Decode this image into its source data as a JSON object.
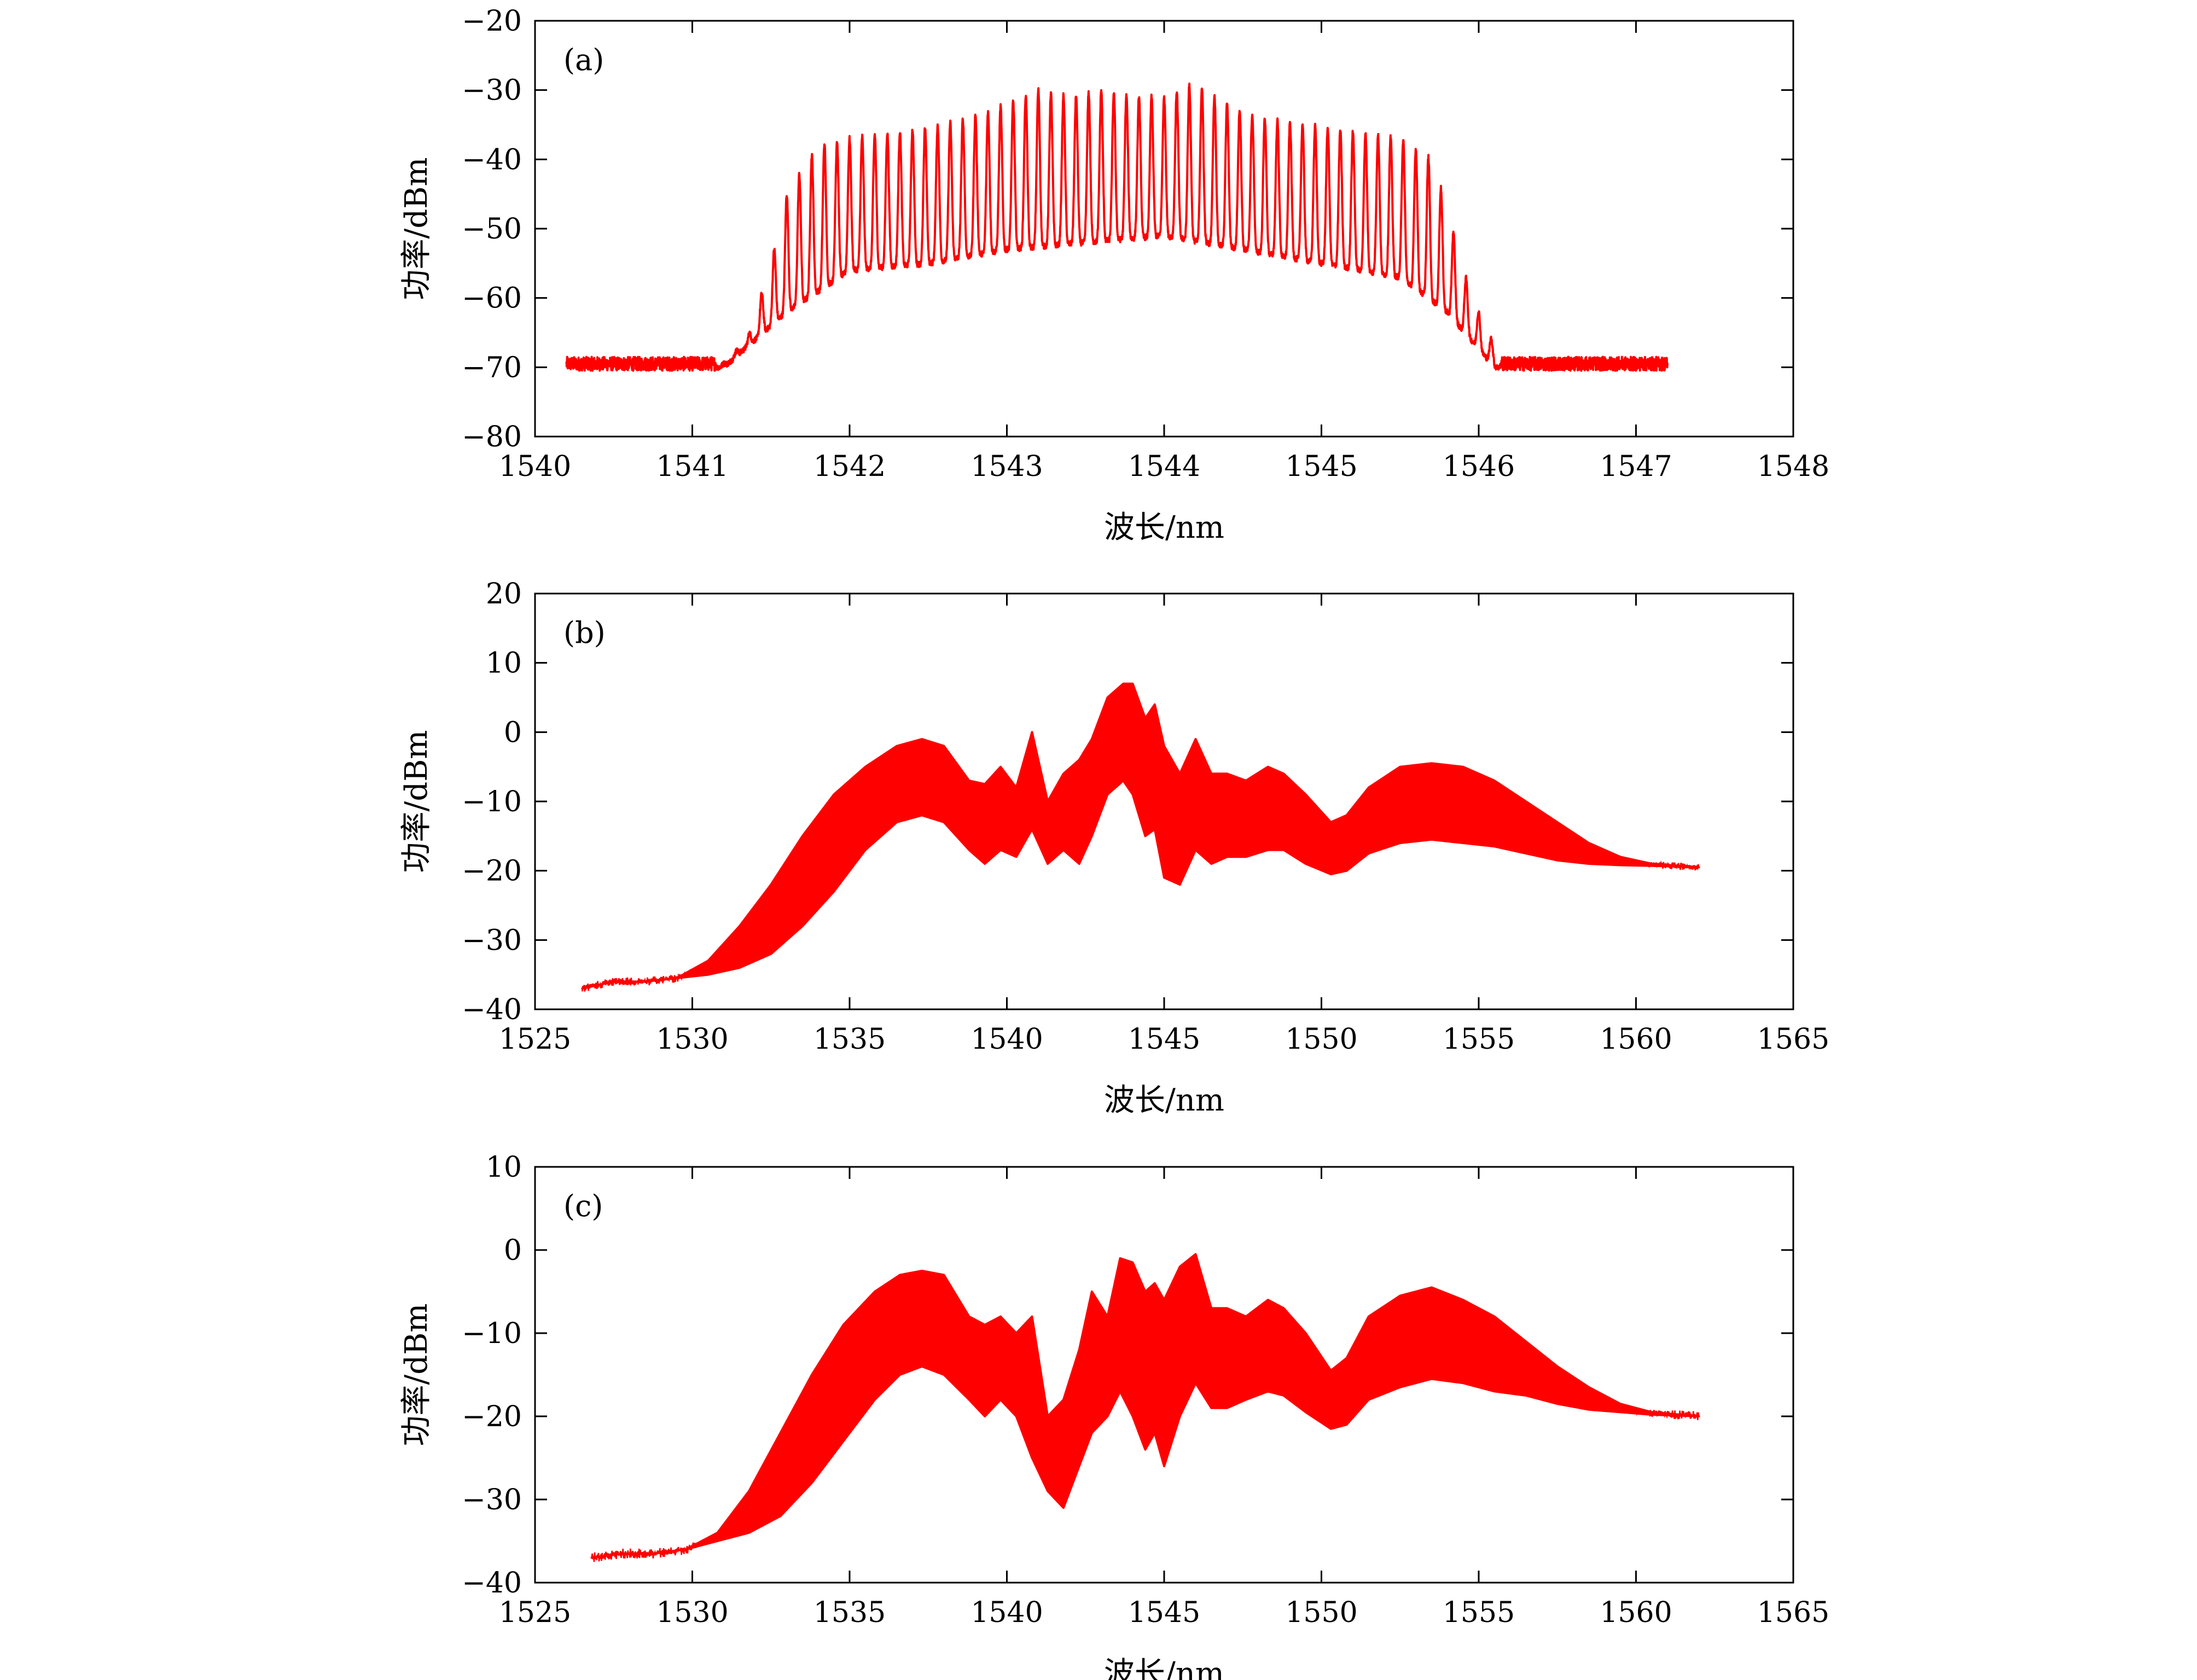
{
  "chart_data": [
    {
      "type": "line",
      "panel_label": "(a)",
      "xlabel": "波长/nm",
      "ylabel": "功率/dBm",
      "xlim": [
        1540,
        1548
      ],
      "ylim": [
        -80,
        -20
      ],
      "xticks": [
        1540,
        1541,
        1542,
        1543,
        1544,
        1545,
        1546,
        1547,
        1548
      ],
      "yticks": [
        -80,
        -70,
        -60,
        -50,
        -40,
        -30,
        -20
      ],
      "xtick_labels": [
        "1540",
        "1541",
        "1542",
        "1543",
        "1544",
        "1545",
        "1546",
        "1547",
        "1548"
      ],
      "ytick_labels": [
        "−80",
        "−70",
        "−60",
        "−50",
        "−40",
        "−30",
        "−20"
      ],
      "series": [
        {
          "color": "#ff0000",
          "style": "comb",
          "x_range": [
            1540.2,
            1547.2
          ],
          "noise_floor": -69.5,
          "comb_spacing": 0.08,
          "points": [
            [
              1540.2,
              -69.8
            ],
            [
              1541.2,
              -69.5
            ],
            [
              1541.35,
              -66
            ],
            [
              1541.5,
              -55
            ],
            [
              1541.6,
              -45
            ],
            [
              1541.8,
              -38
            ],
            [
              1542.0,
              -37
            ],
            [
              1542.3,
              -36
            ],
            [
              1542.6,
              -35
            ],
            [
              1542.9,
              -33
            ],
            [
              1543.2,
              -30
            ],
            [
              1543.4,
              -31
            ],
            [
              1543.6,
              -30
            ],
            [
              1543.8,
              -31
            ],
            [
              1544.0,
              -31
            ],
            [
              1544.2,
              -29
            ],
            [
              1544.4,
              -32
            ],
            [
              1544.6,
              -34
            ],
            [
              1544.9,
              -35
            ],
            [
              1545.2,
              -36
            ],
            [
              1545.5,
              -37
            ],
            [
              1545.7,
              -40
            ],
            [
              1545.8,
              -47
            ],
            [
              1545.9,
              -56
            ],
            [
              1546.05,
              -65
            ],
            [
              1546.2,
              -69.5
            ],
            [
              1547.2,
              -69.5
            ]
          ],
          "valleys": [
            [
              1541.2,
              -70
            ],
            [
              1541.6,
              -62
            ],
            [
              1542.0,
              -56
            ],
            [
              1542.5,
              -55
            ],
            [
              1543.0,
              -53
            ],
            [
              1543.5,
              -52
            ],
            [
              1544.0,
              -51
            ],
            [
              1544.5,
              -53
            ],
            [
              1545.0,
              -55
            ],
            [
              1545.5,
              -57
            ],
            [
              1545.8,
              -62
            ],
            [
              1546.1,
              -70
            ]
          ]
        }
      ]
    },
    {
      "type": "area",
      "panel_label": "(b)",
      "xlabel": "波长/nm",
      "ylabel": "功率/dBm",
      "xlim": [
        1525,
        1565
      ],
      "ylim": [
        -40,
        20
      ],
      "xticks": [
        1525,
        1530,
        1535,
        1540,
        1545,
        1550,
        1555,
        1560,
        1565
      ],
      "yticks": [
        -40,
        -30,
        -20,
        -10,
        0,
        10,
        20
      ],
      "xtick_labels": [
        "1525",
        "1530",
        "1535",
        "1540",
        "1545",
        "1550",
        "1555",
        "1560",
        "1565"
      ],
      "ytick_labels": [
        "−40",
        "−30",
        "−20",
        "−10",
        "0",
        "10",
        "20"
      ],
      "series": [
        {
          "color": "#ff0000",
          "style": "band",
          "upper": [
            [
              1526.5,
              -37
            ],
            [
              1527.5,
              -36
            ],
            [
              1528.5,
              -36
            ],
            [
              1529.5,
              -35.5
            ],
            [
              1530.5,
              -33
            ],
            [
              1531.5,
              -28
            ],
            [
              1532.5,
              -22
            ],
            [
              1533.5,
              -15
            ],
            [
              1534.5,
              -9
            ],
            [
              1535.5,
              -5
            ],
            [
              1536.5,
              -2
            ],
            [
              1537.3,
              -1
            ],
            [
              1538.0,
              -2
            ],
            [
              1538.8,
              -7
            ],
            [
              1539.3,
              -7.5
            ],
            [
              1539.8,
              -5
            ],
            [
              1540.3,
              -8
            ],
            [
              1540.8,
              0
            ],
            [
              1541.3,
              -10
            ],
            [
              1541.8,
              -6
            ],
            [
              1542.3,
              -4
            ],
            [
              1542.7,
              -1
            ],
            [
              1543.2,
              5
            ],
            [
              1543.7,
              7
            ],
            [
              1544.0,
              7
            ],
            [
              1544.4,
              2
            ],
            [
              1544.7,
              4
            ],
            [
              1545.0,
              -2
            ],
            [
              1545.5,
              -6
            ],
            [
              1546.0,
              -1
            ],
            [
              1546.5,
              -6
            ],
            [
              1547.0,
              -6
            ],
            [
              1547.6,
              -7
            ],
            [
              1548.3,
              -5
            ],
            [
              1548.8,
              -6
            ],
            [
              1549.5,
              -9
            ],
            [
              1550.3,
              -13
            ],
            [
              1550.8,
              -12
            ],
            [
              1551.5,
              -8
            ],
            [
              1552.5,
              -5
            ],
            [
              1553.5,
              -4.5
            ],
            [
              1554.5,
              -5
            ],
            [
              1555.5,
              -7
            ],
            [
              1556.5,
              -10
            ],
            [
              1557.5,
              -13
            ],
            [
              1558.5,
              -16
            ],
            [
              1559.5,
              -18
            ],
            [
              1560.5,
              -19
            ],
            [
              1562.0,
              -19.5
            ]
          ],
          "lower": [
            [
              1526.5,
              -37
            ],
            [
              1527.5,
              -36
            ],
            [
              1528.5,
              -36
            ],
            [
              1529.5,
              -35.5
            ],
            [
              1530.5,
              -35
            ],
            [
              1531.5,
              -34
            ],
            [
              1532.5,
              -32
            ],
            [
              1533.5,
              -28
            ],
            [
              1534.5,
              -23
            ],
            [
              1535.5,
              -17
            ],
            [
              1536.5,
              -13
            ],
            [
              1537.3,
              -12
            ],
            [
              1538.0,
              -13
            ],
            [
              1538.8,
              -17
            ],
            [
              1539.3,
              -19
            ],
            [
              1539.8,
              -17
            ],
            [
              1540.3,
              -18
            ],
            [
              1540.8,
              -14
            ],
            [
              1541.3,
              -19
            ],
            [
              1541.8,
              -17
            ],
            [
              1542.3,
              -19
            ],
            [
              1542.7,
              -15
            ],
            [
              1543.2,
              -9
            ],
            [
              1543.7,
              -7
            ],
            [
              1544.0,
              -9
            ],
            [
              1544.4,
              -15
            ],
            [
              1544.7,
              -14
            ],
            [
              1545.0,
              -21
            ],
            [
              1545.5,
              -22
            ],
            [
              1546.0,
              -17
            ],
            [
              1546.5,
              -19
            ],
            [
              1547.0,
              -18
            ],
            [
              1547.6,
              -18
            ],
            [
              1548.3,
              -17
            ],
            [
              1548.8,
              -17
            ],
            [
              1549.5,
              -19
            ],
            [
              1550.3,
              -20.5
            ],
            [
              1550.8,
              -20
            ],
            [
              1551.5,
              -17.5
            ],
            [
              1552.5,
              -16
            ],
            [
              1553.5,
              -15.5
            ],
            [
              1554.5,
              -16
            ],
            [
              1555.5,
              -16.5
            ],
            [
              1556.5,
              -17.5
            ],
            [
              1557.5,
              -18.5
            ],
            [
              1558.5,
              -19
            ],
            [
              1559.5,
              -19.2
            ],
            [
              1560.5,
              -19.3
            ],
            [
              1562.0,
              -19.5
            ]
          ]
        }
      ]
    },
    {
      "type": "area",
      "panel_label": "(c)",
      "xlabel": "波长/nm",
      "ylabel": "功率/dBm",
      "xlim": [
        1525,
        1565
      ],
      "ylim": [
        -40,
        10
      ],
      "xticks": [
        1525,
        1530,
        1535,
        1540,
        1545,
        1550,
        1555,
        1560,
        1565
      ],
      "yticks": [
        -40,
        -30,
        -20,
        -10,
        0,
        10
      ],
      "xtick_labels": [
        "1525",
        "1530",
        "1535",
        "1540",
        "1545",
        "1550",
        "1555",
        "1560",
        "1565"
      ],
      "ytick_labels": [
        "−40",
        "−30",
        "−20",
        "−10",
        "0",
        "10"
      ],
      "series": [
        {
          "color": "#ff0000",
          "style": "band",
          "upper": [
            [
              1526.8,
              -37
            ],
            [
              1527.8,
              -36.5
            ],
            [
              1528.8,
              -36.5
            ],
            [
              1529.8,
              -36
            ],
            [
              1530.8,
              -34
            ],
            [
              1531.8,
              -29
            ],
            [
              1532.8,
              -22
            ],
            [
              1533.8,
              -15
            ],
            [
              1534.8,
              -9
            ],
            [
              1535.8,
              -5
            ],
            [
              1536.6,
              -3
            ],
            [
              1537.3,
              -2.5
            ],
            [
              1538.0,
              -3
            ],
            [
              1538.8,
              -8
            ],
            [
              1539.3,
              -9
            ],
            [
              1539.8,
              -8
            ],
            [
              1540.3,
              -10
            ],
            [
              1540.8,
              -8
            ],
            [
              1541.3,
              -20
            ],
            [
              1541.8,
              -18
            ],
            [
              1542.3,
              -12
            ],
            [
              1542.7,
              -5
            ],
            [
              1543.2,
              -8
            ],
            [
              1543.6,
              -1
            ],
            [
              1544.0,
              -1.5
            ],
            [
              1544.4,
              -5
            ],
            [
              1544.7,
              -4
            ],
            [
              1545.0,
              -6
            ],
            [
              1545.5,
              -2
            ],
            [
              1546.0,
              -0.5
            ],
            [
              1546.5,
              -7
            ],
            [
              1547.0,
              -7
            ],
            [
              1547.6,
              -8
            ],
            [
              1548.3,
              -6
            ],
            [
              1548.8,
              -7
            ],
            [
              1549.5,
              -10
            ],
            [
              1550.3,
              -14.5
            ],
            [
              1550.8,
              -13
            ],
            [
              1551.5,
              -8
            ],
            [
              1552.5,
              -5.5
            ],
            [
              1553.5,
              -4.5
            ],
            [
              1554.5,
              -6
            ],
            [
              1555.5,
              -8
            ],
            [
              1556.5,
              -11
            ],
            [
              1557.5,
              -14
            ],
            [
              1558.5,
              -16.5
            ],
            [
              1559.5,
              -18.5
            ],
            [
              1560.5,
              -19.5
            ],
            [
              1562.0,
              -20
            ]
          ],
          "lower": [
            [
              1526.8,
              -37
            ],
            [
              1527.8,
              -36.5
            ],
            [
              1528.8,
              -36.5
            ],
            [
              1529.8,
              -36
            ],
            [
              1530.8,
              -35
            ],
            [
              1531.8,
              -34
            ],
            [
              1532.8,
              -32
            ],
            [
              1533.8,
              -28
            ],
            [
              1534.8,
              -23
            ],
            [
              1535.8,
              -18
            ],
            [
              1536.6,
              -15
            ],
            [
              1537.3,
              -14
            ],
            [
              1538.0,
              -15
            ],
            [
              1538.8,
              -18
            ],
            [
              1539.3,
              -20
            ],
            [
              1539.8,
              -18
            ],
            [
              1540.3,
              -20
            ],
            [
              1540.8,
              -25
            ],
            [
              1541.3,
              -29
            ],
            [
              1541.8,
              -31
            ],
            [
              1542.3,
              -26
            ],
            [
              1542.7,
              -22
            ],
            [
              1543.2,
              -20
            ],
            [
              1543.6,
              -17
            ],
            [
              1544.0,
              -20
            ],
            [
              1544.4,
              -24
            ],
            [
              1544.7,
              -22
            ],
            [
              1545.0,
              -26
            ],
            [
              1545.5,
              -20
            ],
            [
              1546.0,
              -16
            ],
            [
              1546.5,
              -19
            ],
            [
              1547.0,
              -19
            ],
            [
              1547.6,
              -18
            ],
            [
              1548.3,
              -17
            ],
            [
              1548.8,
              -17.5
            ],
            [
              1549.5,
              -19.5
            ],
            [
              1550.3,
              -21.5
            ],
            [
              1550.8,
              -21
            ],
            [
              1551.5,
              -18
            ],
            [
              1552.5,
              -16.5
            ],
            [
              1553.5,
              -15.5
            ],
            [
              1554.5,
              -16
            ],
            [
              1555.5,
              -17
            ],
            [
              1556.5,
              -17.5
            ],
            [
              1557.5,
              -18.5
            ],
            [
              1558.5,
              -19.2
            ],
            [
              1559.5,
              -19.5
            ],
            [
              1560.5,
              -19.8
            ],
            [
              1562.0,
              -20
            ]
          ]
        }
      ]
    }
  ]
}
